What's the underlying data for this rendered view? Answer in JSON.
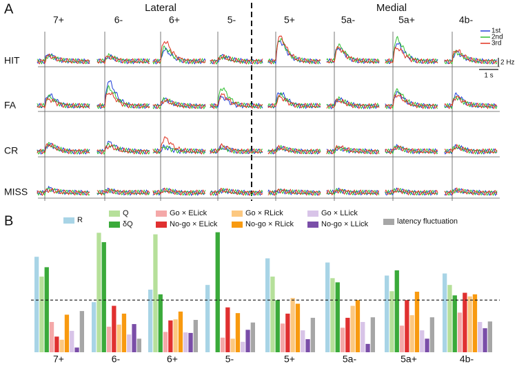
{
  "panel_labels": [
    "A",
    "B"
  ],
  "panel_a": {
    "group_labels": [
      "Lateral",
      "Medial"
    ],
    "columns": [
      "7+",
      "6-",
      "6+",
      "5-",
      "5+",
      "5a-",
      "5a+",
      "4b-"
    ],
    "rows": [
      "HIT",
      "FA",
      "CR",
      "MISS"
    ],
    "legend": [
      {
        "name": "1st",
        "color": "#1f3fd8"
      },
      {
        "name": "2nd",
        "color": "#2fbf2f"
      },
      {
        "name": "3rd",
        "color": "#e0301e"
      }
    ],
    "scale_y": {
      "value": 2,
      "label": "2 Hz"
    },
    "scale_x": {
      "value": 1,
      "label": "1 s"
    },
    "peaks": [
      [
        [
          1.5,
          1.3,
          1.2
        ],
        [
          1,
          1.2,
          1
        ],
        [
          2.5,
          3,
          4.5
        ],
        [
          1.2,
          1,
          1
        ],
        [
          4.5,
          5,
          5.5
        ],
        [
          3,
          3.5,
          3
        ],
        [
          4,
          5,
          3
        ],
        [
          2,
          2,
          2.5
        ]
      ],
      [
        [
          2.5,
          2,
          1.5
        ],
        [
          5.5,
          4,
          3
        ],
        [
          1.5,
          1.5,
          1.2
        ],
        [
          2,
          4,
          2.5
        ],
        [
          3,
          2.5,
          2
        ],
        [
          1.5,
          1.5,
          1.2
        ],
        [
          3,
          3.5,
          2.5
        ],
        [
          2.5,
          2,
          2
        ]
      ],
      [
        [
          1.5,
          1.5,
          1.5
        ],
        [
          2,
          1.5,
          1.2
        ],
        [
          1,
          1,
          3
        ],
        [
          0.8,
          0.8,
          1.2
        ],
        [
          0.8,
          0.8,
          0.8
        ],
        [
          0.8,
          0.8,
          1
        ],
        [
          1,
          1,
          1
        ],
        [
          1,
          1,
          1
        ]
      ],
      [
        [
          1,
          0.8,
          0.6
        ],
        [
          0.5,
          0.5,
          0.5
        ],
        [
          0.5,
          0.5,
          0.5
        ],
        [
          0.5,
          0.5,
          0.5
        ],
        [
          0.5,
          0.5,
          0.5
        ],
        [
          0.5,
          0.5,
          0.5
        ],
        [
          0.5,
          0.5,
          0.5
        ],
        [
          0.6,
          0.5,
          0.5
        ]
      ]
    ]
  },
  "chart_data": {
    "type": "bar",
    "categories": [
      "7+",
      "6-",
      "6+",
      "5-",
      "5+",
      "5a-",
      "5a+",
      "4b-"
    ],
    "ylim": [
      0,
      2.4
    ],
    "reference_line": 1,
    "series": [
      {
        "name": "R",
        "color": "#a8d4e6",
        "values": [
          1.83,
          0.96,
          1.2,
          1.29,
          1.8,
          1.72,
          1.47,
          1.51
        ]
      },
      {
        "name": "Q",
        "color": "#b6e09a",
        "values": [
          1.45,
          2.29,
          2.26,
          0,
          1.45,
          1.42,
          1.17,
          1.29
        ]
      },
      {
        "name": "δQ",
        "color": "#3aaa3a",
        "values": [
          1.63,
          2.11,
          1.11,
          2.3,
          1.0,
          1.34,
          1.57,
          1.09
        ]
      },
      {
        "name": "Go × ELick",
        "color": "#f4a8a8",
        "values": [
          0.58,
          0.49,
          0.39,
          0.28,
          0.55,
          0.47,
          0.51,
          0.76
        ]
      },
      {
        "name": "No-go × ELick",
        "color": "#e03030",
        "values": [
          0.3,
          0.89,
          0.61,
          0.86,
          0.74,
          0.66,
          1.0,
          1.14
        ]
      },
      {
        "name": "Go × RLick",
        "color": "#fcc880",
        "values": [
          0.24,
          0.53,
          0.63,
          0.26,
          1.04,
          0.89,
          0.71,
          1.07
        ]
      },
      {
        "name": "No-go × RLick",
        "color": "#f89a10",
        "values": [
          0.72,
          0.74,
          0.78,
          0.75,
          0.93,
          1.0,
          1.16,
          1.11
        ]
      },
      {
        "name": "Go × LLick",
        "color": "#d8c4e8",
        "values": [
          0.41,
          0.34,
          0.38,
          0.2,
          0.42,
          0.58,
          0.42,
          0.58
        ]
      },
      {
        "name": "No-go × LLick",
        "color": "#7a4ea8",
        "values": [
          0.09,
          0.54,
          0.37,
          0.43,
          0.25,
          0.16,
          0.26,
          0.46
        ]
      },
      {
        "name": "latency fluctuation",
        "color": "#a6a6a6",
        "values": [
          0.79,
          0.26,
          0.62,
          0.57,
          0.66,
          0.67,
          0.67,
          0.59
        ]
      }
    ]
  }
}
